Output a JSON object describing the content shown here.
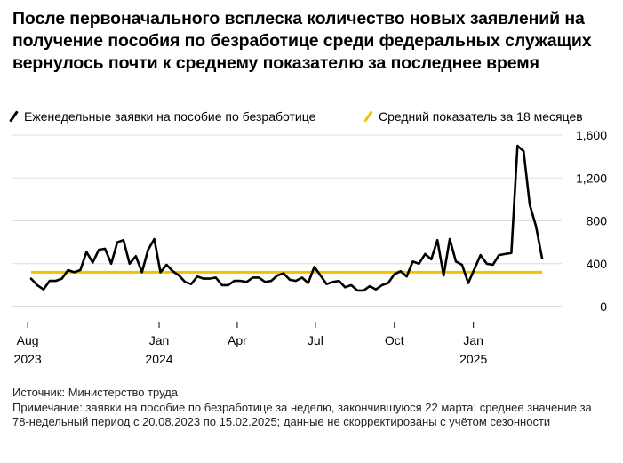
{
  "title": "После первоначального всплеска количество новых заявлений на получение пособия по безработице среди федеральных служащих вернулось почти к среднему показателю за последнее время",
  "legend": {
    "weekly": "Еженедельные заявки на пособие по безработице",
    "average": "Средний показатель за 18 месяцев"
  },
  "colors": {
    "line": "#000000",
    "average": "#f2c200",
    "grid": "#dedede"
  },
  "chart_data": {
    "type": "line",
    "title": "После первоначального всплеска количество новых заявлений на получение пособия по безработице среди федеральных служащих вернулось почти к среднему показателю за последнее время",
    "xlabel": "",
    "ylabel": "",
    "x_start": "2023-08-05",
    "x_end": "2025-03-22",
    "ylim": [
      0,
      1600
    ],
    "yticks": [
      0,
      400,
      800,
      1200,
      1600
    ],
    "ytick_labels": [
      "0",
      "400",
      "800",
      "1,200",
      "1,600"
    ],
    "xticks": [
      {
        "date": "2023-08-01",
        "line1": "Aug",
        "line2": "2023"
      },
      {
        "date": "2024-01-01",
        "line1": "Jan",
        "line2": "2024"
      },
      {
        "date": "2024-04-01",
        "line1": "Apr",
        "line2": ""
      },
      {
        "date": "2024-07-01",
        "line1": "Jul",
        "line2": ""
      },
      {
        "date": "2024-10-01",
        "line1": "Oct",
        "line2": ""
      },
      {
        "date": "2025-01-01",
        "line1": "Jan",
        "line2": "2025"
      }
    ],
    "grid": true,
    "legend_position": "top",
    "series": [
      {
        "name": "Еженедельные заявки на пособие по безработице",
        "values": [
          260,
          200,
          160,
          240,
          240,
          260,
          340,
          320,
          340,
          510,
          410,
          530,
          540,
          400,
          600,
          620,
          400,
          470,
          320,
          530,
          630,
          320,
          390,
          330,
          290,
          230,
          210,
          280,
          260,
          260,
          270,
          200,
          200,
          240,
          240,
          230,
          270,
          270,
          230,
          240,
          290,
          310,
          250,
          240,
          270,
          220,
          370,
          290,
          210,
          230,
          240,
          180,
          200,
          150,
          150,
          190,
          160,
          200,
          220,
          300,
          330,
          280,
          420,
          400,
          490,
          440,
          620,
          290,
          630,
          420,
          390,
          220,
          350,
          480,
          400,
          390,
          480,
          490,
          500,
          1500,
          1450,
          950,
          750,
          450
        ]
      },
      {
        "name": "Средний показатель за 18 месяцев",
        "values": [
          320
        ]
      }
    ]
  },
  "footer": {
    "source": "Источник: Министерство труда",
    "note": "Примечание: заявки на пособие по безработице за неделю, закончившуюся 22 марта; среднее значение за 78-недельный период с 20.08.2023 по 15.02.2025; данные не скорректированы с учётом сезонности"
  }
}
